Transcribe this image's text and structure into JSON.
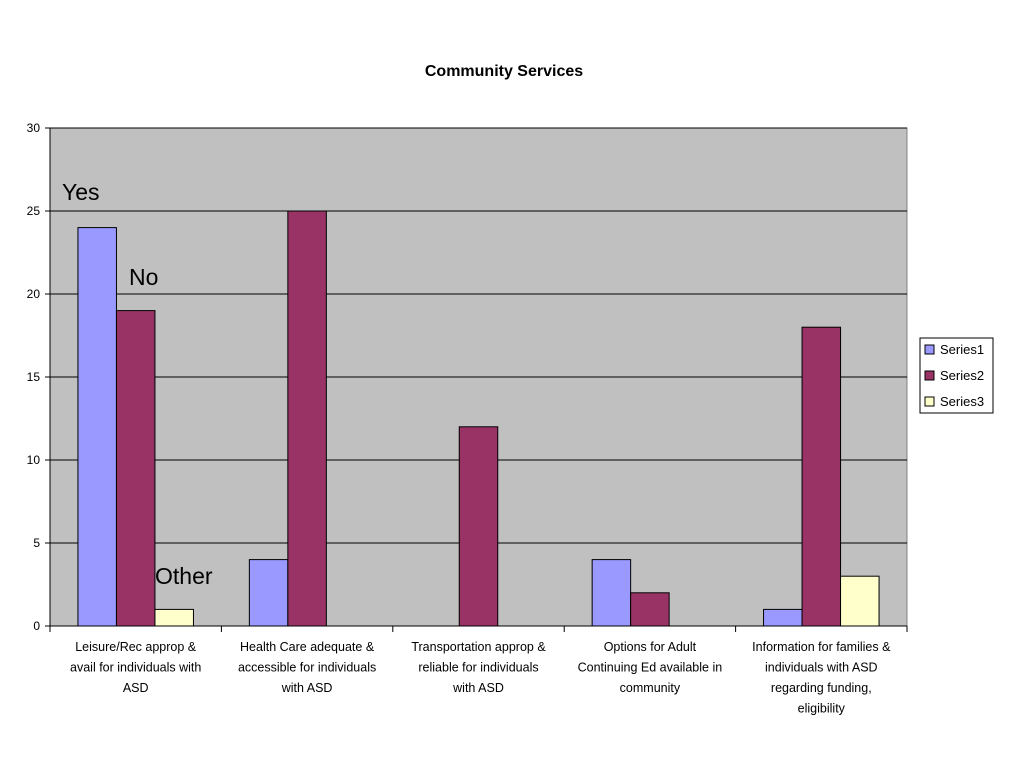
{
  "chart_data": {
    "type": "bar",
    "title": "Community Services",
    "categories": [
      [
        "Leisure/Rec approp &",
        "avail for individuals with",
        "ASD"
      ],
      [
        "Health Care adequate &",
        "accessible for individuals",
        "with ASD"
      ],
      [
        "Transportation approp &",
        "reliable for individuals",
        "with ASD"
      ],
      [
        "Options for Adult",
        "Continuing Ed available in",
        "community"
      ],
      [
        "Information for families &",
        "individuals with ASD",
        "regarding funding,",
        "eligibility"
      ]
    ],
    "series": [
      {
        "name": "Series1",
        "color": "#9999ff",
        "values": [
          24,
          4,
          0,
          4,
          1
        ]
      },
      {
        "name": "Series2",
        "color": "#993366",
        "values": [
          19,
          25,
          12,
          2,
          18
        ]
      },
      {
        "name": "Series3",
        "color": "#ffffcc",
        "values": [
          1,
          0,
          0,
          0,
          3
        ]
      }
    ],
    "ylim": [
      0,
      30
    ],
    "yticks": [
      0,
      5,
      10,
      15,
      20,
      25,
      30
    ],
    "grid": true,
    "plot_background": "#c0c0c0",
    "legend_position": "right",
    "annotations": [
      "Yes",
      "No",
      "Other"
    ]
  }
}
